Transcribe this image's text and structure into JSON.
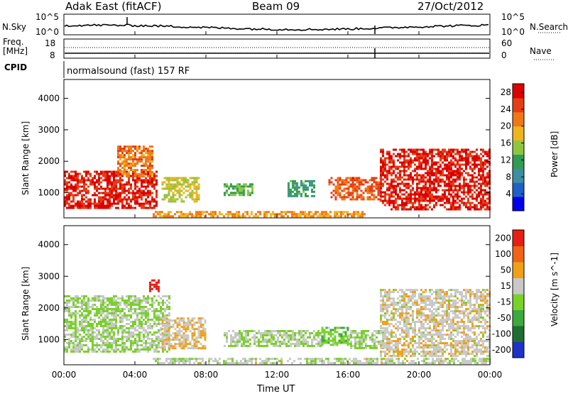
{
  "header": {
    "station": "Adak East (fitACF)",
    "beam": "Beam 09",
    "date": "27/Oct/2012"
  },
  "noise_panel": {
    "left_label": "N.Sky",
    "right_label": "N.Search",
    "y_ticks_left": [
      "10^5",
      "10^0"
    ],
    "y_ticks_right": [
      "10^5",
      "10^0"
    ]
  },
  "freq_panel": {
    "left_label_top": "Freq.",
    "left_label_unit": "[MHz]",
    "right_label": "Nave",
    "y_ticks_left": [
      "18",
      "8"
    ],
    "y_ticks_right": [
      "60",
      "0"
    ]
  },
  "cpid": {
    "label": "CPID",
    "text": "normalsound (fast) 157 RF"
  },
  "x_axis": {
    "label": "Time UT",
    "ticks": [
      "00:00",
      "04:00",
      "08:00",
      "12:00",
      "16:00",
      "20:00",
      "00:00"
    ]
  },
  "chart_data": [
    {
      "type": "heatmap",
      "quantity": "Power",
      "colorbar_label": "Power [dB]",
      "ylabel": "Slant Range [km]",
      "xlabel": "",
      "x_range_hours": [
        0,
        24
      ],
      "ylim": [
        200,
        4600
      ],
      "y_ticks": [
        1000,
        2000,
        3000,
        4000
      ],
      "colorbar_ticks": [
        4,
        8,
        12,
        16,
        20,
        24,
        28
      ],
      "colorbar_range": [
        0,
        30
      ],
      "colorscale": [
        "#0000ee",
        "#1e5fc8",
        "#3d8ea0",
        "#2f9d53",
        "#8cc640",
        "#f0b41e",
        "#f07814",
        "#e63c14",
        "#dc0000"
      ],
      "regions": [
        {
          "t0": 0.0,
          "t1": 5.2,
          "r0": 500,
          "r1": 1700,
          "value": 27
        },
        {
          "t0": 3.0,
          "t1": 5.0,
          "r0": 1500,
          "r1": 2500,
          "value": 22
        },
        {
          "t0": 5.5,
          "t1": 7.6,
          "r0": 700,
          "r1": 1500,
          "value": 17
        },
        {
          "t0": 9.0,
          "t1": 10.6,
          "r0": 900,
          "r1": 1300,
          "value": 13
        },
        {
          "t0": 12.6,
          "t1": 14.1,
          "r0": 900,
          "r1": 1400,
          "value": 11
        },
        {
          "t0": 14.9,
          "t1": 17.8,
          "r0": 800,
          "r1": 1500,
          "value": 24
        },
        {
          "t0": 17.8,
          "t1": 24.0,
          "r0": 500,
          "r1": 2400,
          "value": 27
        },
        {
          "t0": 5.0,
          "t1": 17.0,
          "r0": 250,
          "r1": 420,
          "value": 20
        }
      ]
    },
    {
      "type": "heatmap",
      "quantity": "Velocity",
      "colorbar_label": "Velocity [m s^-1]",
      "ylabel": "Slant Range [km]",
      "xlabel": "Time UT",
      "x_range_hours": [
        0,
        24
      ],
      "ylim": [
        200,
        4600
      ],
      "y_ticks": [
        1000,
        2000,
        3000,
        4000
      ],
      "colorbar_ticks": [
        200,
        100,
        50,
        15,
        -15,
        -50,
        -100,
        -200
      ],
      "colorbar_range": [
        -250,
        250
      ],
      "colorscale": [
        "#1e32c8",
        "#1e6e32",
        "#3caa3c",
        "#78d228",
        "#c8c8c8",
        "#f0a014",
        "#f06414",
        "#e61e14"
      ],
      "regions": [
        {
          "t0": 0.0,
          "t1": 6.0,
          "r0": 600,
          "r1": 2400,
          "value": 0
        },
        {
          "t0": 4.8,
          "t1": 5.3,
          "r0": 2500,
          "r1": 2900,
          "value": 220
        },
        {
          "t0": 5.5,
          "t1": 8.0,
          "r0": 700,
          "r1": 1700,
          "value": 60
        },
        {
          "t0": 9.0,
          "t1": 14.5,
          "r0": 800,
          "r1": 1300,
          "value": 0
        },
        {
          "t0": 14.5,
          "t1": 16.0,
          "r0": 800,
          "r1": 1400,
          "value": -40
        },
        {
          "t0": 16.0,
          "t1": 18.0,
          "r0": 700,
          "r1": 1300,
          "value": 0
        },
        {
          "t0": 17.8,
          "t1": 24.0,
          "r0": 500,
          "r1": 2600,
          "value": 40
        },
        {
          "t0": 5.0,
          "t1": 24.0,
          "r0": 250,
          "r1": 420,
          "value": 20
        }
      ]
    }
  ]
}
